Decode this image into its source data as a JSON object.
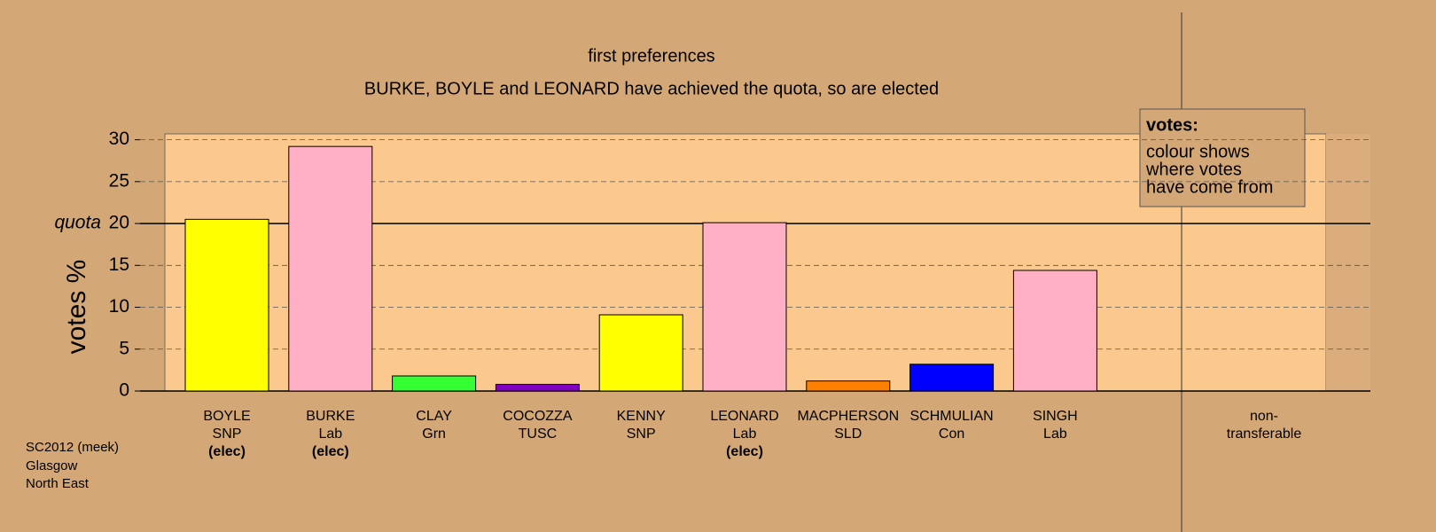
{
  "chart_data": {
    "type": "bar",
    "title": "first preferences",
    "subtitle": "BURKE, BOYLE and LEONARD have achieved the quota, so are elected",
    "y_label": "votes %",
    "categories": [
      [
        "BOYLE",
        "SNP",
        "(elec)"
      ],
      [
        "BURKE",
        "Lab",
        "(elec)"
      ],
      [
        "CLAY",
        "Grn"
      ],
      [
        "COCOZZA",
        "TUSC"
      ],
      [
        "KENNY",
        "SNP"
      ],
      [
        "LEONARD",
        "Lab",
        "(elec)"
      ],
      [
        "MACPHERSON",
        "SLD"
      ],
      [
        "SCHMULIAN",
        "Con"
      ],
      [
        "SINGH",
        "Lab"
      ],
      [
        "non-",
        "transferable"
      ]
    ],
    "values": [
      20.5,
      29.2,
      1.8,
      0.8,
      9.1,
      20.1,
      1.2,
      3.2,
      14.4,
      0
    ],
    "colors": [
      "#ffff00",
      "#ffb0c4",
      "#33ff33",
      "#8000c0",
      "#ffff00",
      "#ffb0c4",
      "#ff8000",
      "#0000ff",
      "#ffb0c4",
      "#d4a876"
    ],
    "ylim": [
      0,
      30.7
    ],
    "yticks": [
      0,
      5,
      10,
      15,
      20,
      25,
      30
    ],
    "grid": true,
    "quota": 20,
    "quota_label": "quota",
    "legend": {
      "title": "votes:",
      "lines": [
        "colour shows",
        "where votes",
        "have come from"
      ]
    },
    "footer": [
      "SC2012 (meek)",
      "Glasgow",
      "North East"
    ]
  }
}
